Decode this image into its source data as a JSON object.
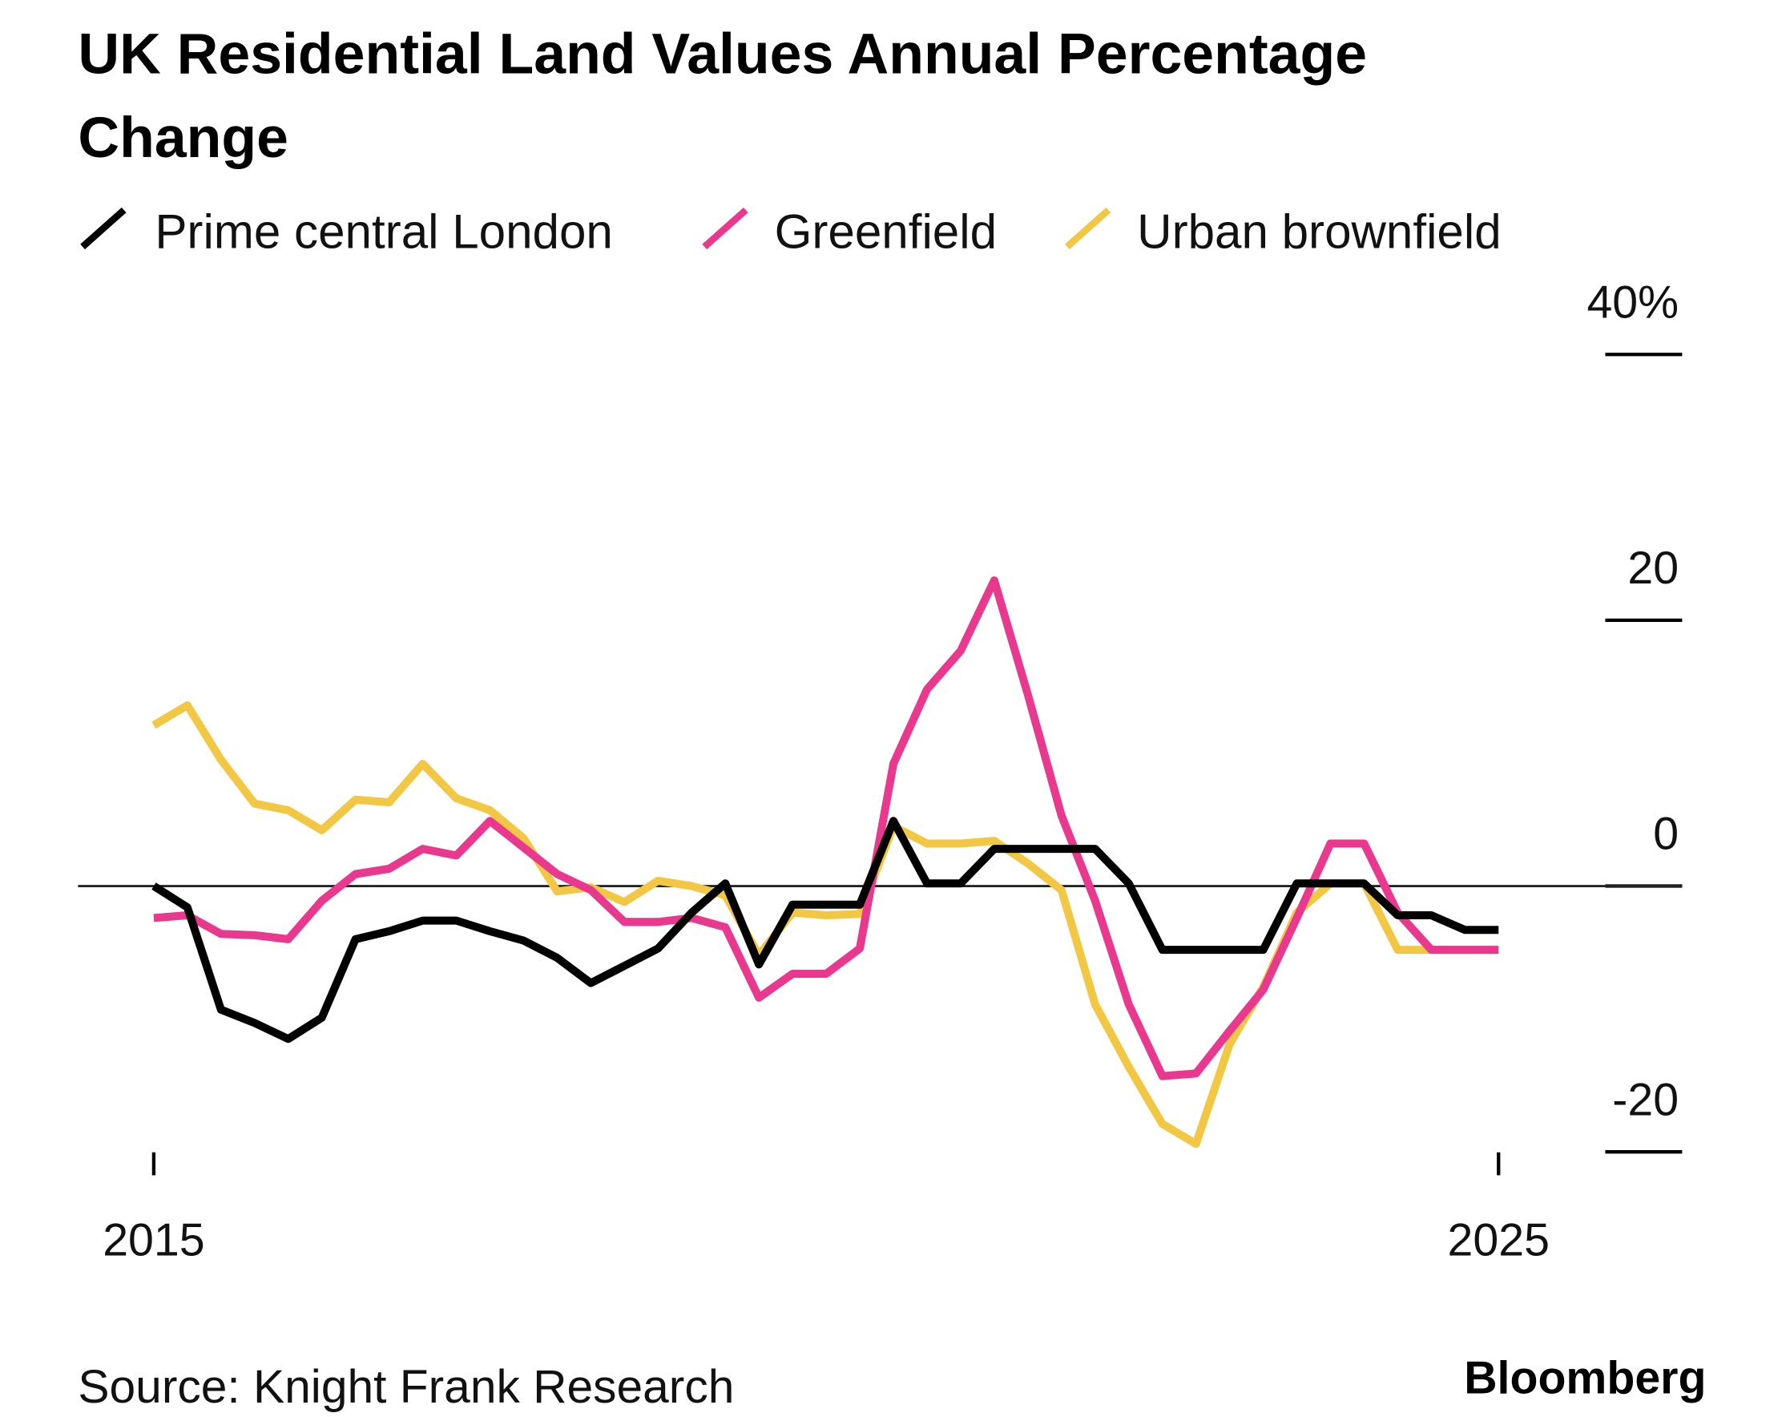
{
  "chart_data": {
    "type": "line",
    "title": "UK Residential Land Values Annual Percentage Change",
    "title_lines": [
      "UK Residential Land Values Annual Percentage",
      "Change"
    ],
    "source": "Source: Knight Frank Research",
    "brand": "Bloomberg",
    "xlabel": "",
    "ylabel": "",
    "x_ticks": [
      "2015",
      "2025"
    ],
    "y_ticks": [
      "40%",
      "20",
      "0",
      "-20"
    ],
    "y_tick_values": [
      40,
      20,
      0,
      -20
    ],
    "ylim": [
      -20,
      40
    ],
    "xlim": [
      2015,
      2025
    ],
    "grid": false,
    "zero_line": true,
    "legend_position": "top-left",
    "x": [
      2015,
      2015.25,
      2015.5,
      2015.75,
      2016,
      2016.25,
      2016.5,
      2016.75,
      2017,
      2017.25,
      2017.5,
      2017.75,
      2018,
      2018.25,
      2018.5,
      2018.75,
      2019,
      2019.25,
      2019.5,
      2019.75,
      2020,
      2020.25,
      2020.5,
      2020.75,
      2021,
      2021.25,
      2021.5,
      2021.75,
      2022,
      2022.25,
      2022.5,
      2022.75,
      2023,
      2023.25,
      2023.5,
      2023.75,
      2024,
      2024.25,
      2024.5,
      2024.75,
      2025
    ],
    "series": [
      {
        "name": "Prime central London",
        "color": "#000000",
        "values": [
          0,
          -1.6,
          -9.3,
          -10.3,
          -11.5,
          -9.9,
          -4,
          -3.4,
          -2.6,
          -2.6,
          -3.4,
          -4.1,
          -5.4,
          -7.3,
          -6,
          -4.7,
          -2,
          0.2,
          -5.9,
          -1.4,
          -1.4,
          -1.4,
          4.9,
          0.2,
          0.2,
          2.8,
          2.8,
          2.8,
          2.8,
          0.2,
          -4.8,
          -4.8,
          -4.8,
          -4.8,
          0.2,
          0.2,
          0.2,
          -2.2,
          -2.2,
          -3.3,
          -3.3
        ]
      },
      {
        "name": "Greenfield",
        "color": "#e8398f",
        "values": [
          -2.4,
          -2.2,
          -3.6,
          -3.7,
          -4,
          -1.1,
          0.9,
          1.3,
          2.8,
          2.3,
          4.9,
          2.9,
          0.9,
          -0.3,
          -2.7,
          -2.7,
          -2.4,
          -3.1,
          -8.4,
          -6.6,
          -6.6,
          -4.7,
          9.2,
          14.8,
          17.7,
          23,
          14.4,
          5.3,
          -1.1,
          -8.9,
          -14.3,
          -14.1,
          -10.9,
          -7.8,
          -2.4,
          3.2,
          3.2,
          -2,
          -4.8,
          -4.8,
          -4.8
        ]
      },
      {
        "name": "Urban brownfield",
        "color": "#f2c744",
        "values": [
          12.1,
          13.6,
          9.5,
          6.2,
          5.7,
          4.2,
          6.5,
          6.3,
          9.2,
          6.6,
          5.7,
          3.6,
          -0.4,
          -0.1,
          -1.2,
          0.4,
          0,
          -0.7,
          -5.2,
          -2,
          -2.2,
          -2.1,
          4.5,
          3.2,
          3.2,
          3.4,
          1.7,
          -0.3,
          -8.9,
          -13.6,
          -17.9,
          -19.4,
          -11.9,
          -7.6,
          -2,
          0.2,
          0.2,
          -4.8,
          -4.8,
          -4.8,
          -4.8
        ]
      }
    ]
  }
}
